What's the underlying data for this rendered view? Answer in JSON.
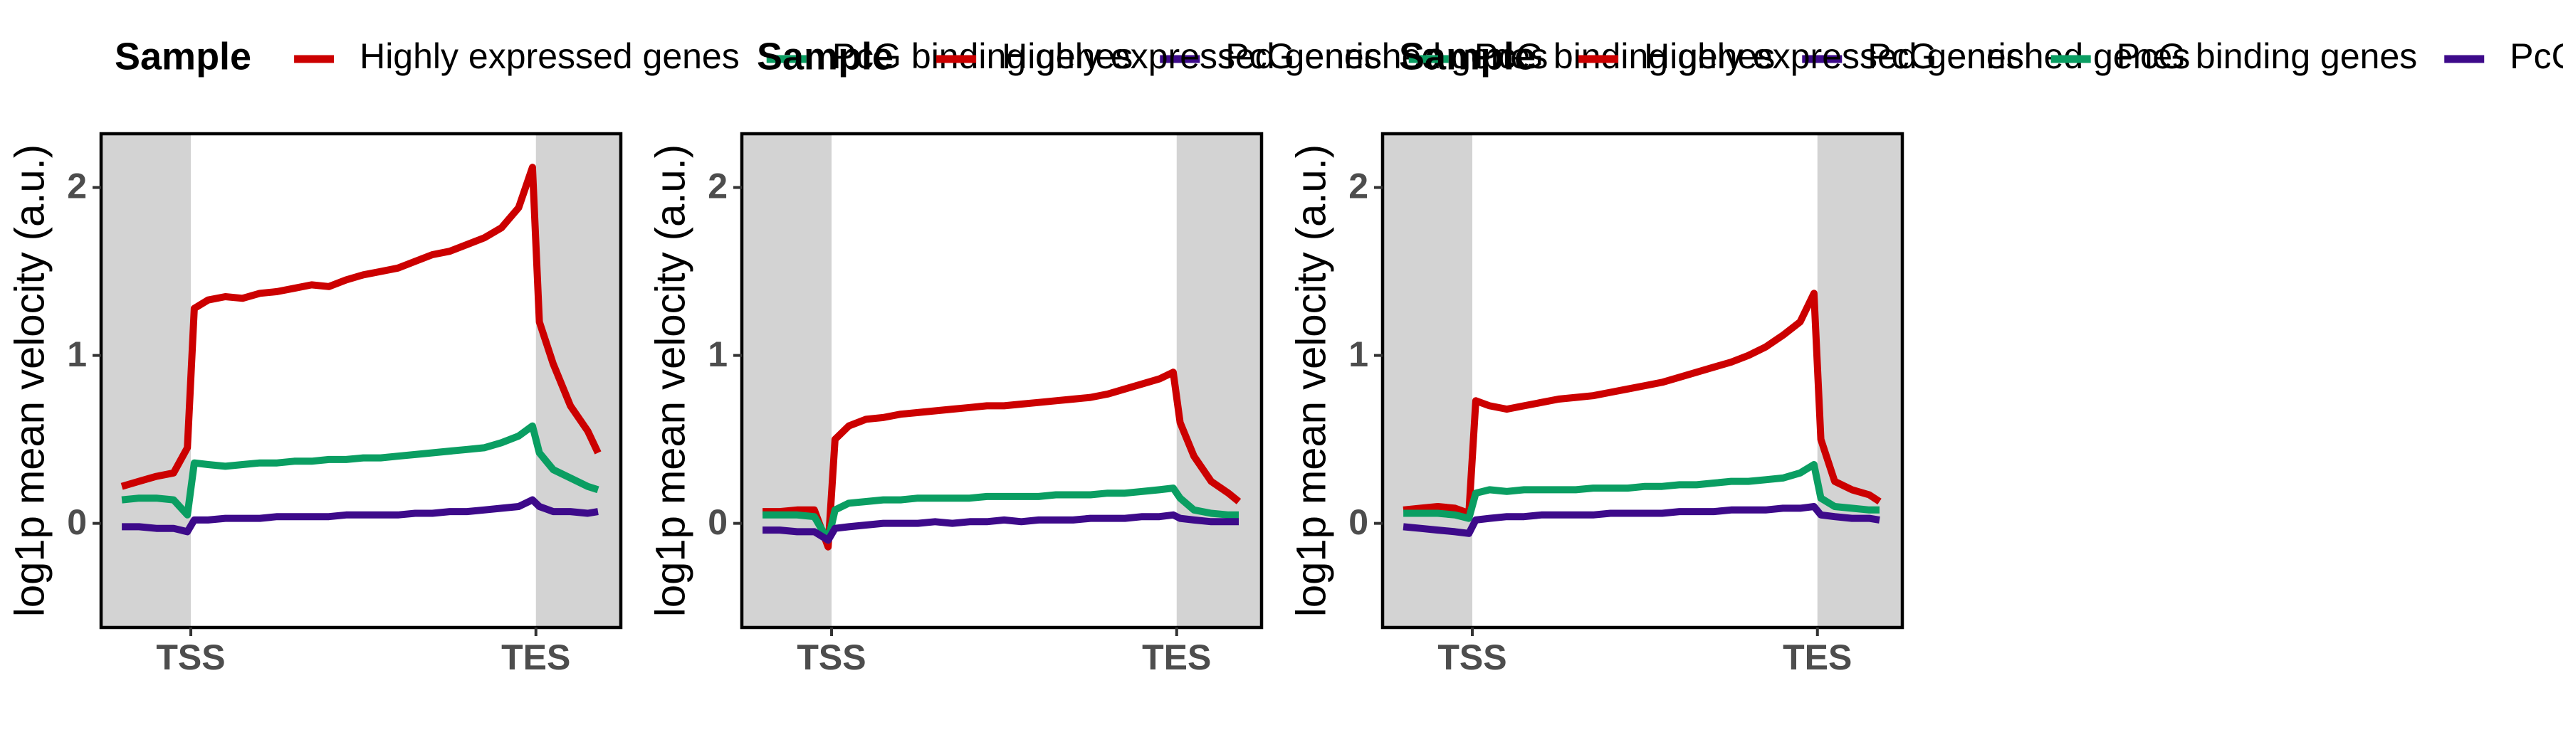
{
  "chart_data": [
    {
      "type": "line",
      "legend_title": "Sample",
      "y_label": "log1p mean velocity (a.u.)",
      "x": [
        -20,
        -15,
        -10,
        -5,
        -1,
        1,
        5,
        10,
        15,
        20,
        25,
        30,
        35,
        40,
        45,
        50,
        55,
        60,
        65,
        70,
        75,
        80,
        85,
        90,
        95,
        99,
        101,
        105,
        110,
        115,
        118
      ],
      "xlim": [
        -26,
        124.6
      ],
      "ylim": [
        -0.62,
        2.32
      ],
      "xticks": [
        {
          "value": 0,
          "label": "TSS"
        },
        {
          "value": 100,
          "label": "TES"
        }
      ],
      "yticks": [
        0,
        1,
        2
      ],
      "series": [
        {
          "name": "Highly expressed genes",
          "color": "#cc0000",
          "values": [
            0.22,
            0.25,
            0.28,
            0.3,
            0.45,
            1.28,
            1.33,
            1.35,
            1.34,
            1.37,
            1.38,
            1.4,
            1.42,
            1.41,
            1.45,
            1.48,
            1.5,
            1.52,
            1.56,
            1.6,
            1.62,
            1.66,
            1.7,
            1.76,
            1.88,
            2.12,
            1.2,
            0.95,
            0.7,
            0.55,
            0.42
          ]
        },
        {
          "name": "PcG binding genes",
          "color": "#0a9e62",
          "values": [
            0.14,
            0.15,
            0.15,
            0.14,
            0.05,
            0.36,
            0.35,
            0.34,
            0.35,
            0.36,
            0.36,
            0.37,
            0.37,
            0.38,
            0.38,
            0.39,
            0.39,
            0.4,
            0.41,
            0.42,
            0.43,
            0.44,
            0.45,
            0.48,
            0.52,
            0.58,
            0.42,
            0.32,
            0.27,
            0.22,
            0.2
          ]
        },
        {
          "name": "PcG enriched genes",
          "color": "#3d0a8a",
          "values": [
            -0.02,
            -0.02,
            -0.03,
            -0.03,
            -0.05,
            0.02,
            0.02,
            0.03,
            0.03,
            0.03,
            0.04,
            0.04,
            0.04,
            0.04,
            0.05,
            0.05,
            0.05,
            0.05,
            0.06,
            0.06,
            0.07,
            0.07,
            0.08,
            0.09,
            0.1,
            0.14,
            0.1,
            0.07,
            0.07,
            0.06,
            0.07
          ]
        }
      ]
    },
    {
      "type": "line",
      "legend_title": "Sample",
      "y_label": "log1p mean velocity (a.u.)",
      "x": [
        -20,
        -15,
        -10,
        -5,
        -1,
        1,
        5,
        10,
        15,
        20,
        25,
        30,
        35,
        40,
        45,
        50,
        55,
        60,
        65,
        70,
        75,
        80,
        85,
        90,
        95,
        99,
        101,
        105,
        110,
        115,
        118
      ],
      "xlim": [
        -26,
        124.6
      ],
      "ylim": [
        -0.62,
        2.32
      ],
      "xticks": [
        {
          "value": 0,
          "label": "TSS"
        },
        {
          "value": 100,
          "label": "TES"
        }
      ],
      "yticks": [
        0,
        1,
        2
      ],
      "series": [
        {
          "name": "Highly expressed genes",
          "color": "#cc0000",
          "values": [
            0.07,
            0.07,
            0.08,
            0.08,
            -0.14,
            0.5,
            0.58,
            0.62,
            0.63,
            0.65,
            0.66,
            0.67,
            0.68,
            0.69,
            0.7,
            0.7,
            0.71,
            0.72,
            0.73,
            0.74,
            0.75,
            0.77,
            0.8,
            0.83,
            0.86,
            0.9,
            0.6,
            0.4,
            0.25,
            0.18,
            0.13
          ]
        },
        {
          "name": "PcG binding genes",
          "color": "#0a9e62",
          "values": [
            0.05,
            0.05,
            0.05,
            0.04,
            -0.1,
            0.08,
            0.12,
            0.13,
            0.14,
            0.14,
            0.15,
            0.15,
            0.15,
            0.15,
            0.16,
            0.16,
            0.16,
            0.16,
            0.17,
            0.17,
            0.17,
            0.18,
            0.18,
            0.19,
            0.2,
            0.21,
            0.15,
            0.08,
            0.06,
            0.05,
            0.05
          ]
        },
        {
          "name": "PcG enriched genes",
          "color": "#3d0a8a",
          "values": [
            -0.04,
            -0.04,
            -0.05,
            -0.05,
            -0.1,
            -0.03,
            -0.02,
            -0.01,
            0,
            0,
            0,
            0.01,
            0,
            0.01,
            0.01,
            0.02,
            0.01,
            0.02,
            0.02,
            0.02,
            0.03,
            0.03,
            0.03,
            0.04,
            0.04,
            0.05,
            0.03,
            0.02,
            0.01,
            0.01,
            0.01
          ]
        }
      ]
    },
    {
      "type": "line",
      "legend_title": "Sample",
      "y_label": "log1p mean velocity (a.u.)",
      "x": [
        -20,
        -15,
        -10,
        -5,
        -1,
        1,
        5,
        10,
        15,
        20,
        25,
        30,
        35,
        40,
        45,
        50,
        55,
        60,
        65,
        70,
        75,
        80,
        85,
        90,
        95,
        99,
        101,
        105,
        110,
        115,
        118
      ],
      "xlim": [
        -26,
        124.6
      ],
      "ylim": [
        -0.62,
        2.32
      ],
      "xticks": [
        {
          "value": 0,
          "label": "TSS"
        },
        {
          "value": 100,
          "label": "TES"
        }
      ],
      "yticks": [
        0,
        1,
        2
      ],
      "series": [
        {
          "name": "Highly expressed genes",
          "color": "#cc0000",
          "values": [
            0.08,
            0.09,
            0.1,
            0.09,
            0.06,
            0.73,
            0.7,
            0.68,
            0.7,
            0.72,
            0.74,
            0.75,
            0.76,
            0.78,
            0.8,
            0.82,
            0.84,
            0.87,
            0.9,
            0.93,
            0.96,
            1.0,
            1.05,
            1.12,
            1.2,
            1.37,
            0.5,
            0.25,
            0.2,
            0.17,
            0.13
          ]
        },
        {
          "name": "PcG binding genes",
          "color": "#0a9e62",
          "values": [
            0.06,
            0.06,
            0.06,
            0.05,
            0.03,
            0.18,
            0.2,
            0.19,
            0.2,
            0.2,
            0.2,
            0.2,
            0.21,
            0.21,
            0.21,
            0.22,
            0.22,
            0.23,
            0.23,
            0.24,
            0.25,
            0.25,
            0.26,
            0.27,
            0.3,
            0.35,
            0.15,
            0.1,
            0.09,
            0.08,
            0.08
          ]
        },
        {
          "name": "PcG enriched genes",
          "color": "#3d0a8a",
          "values": [
            -0.02,
            -0.03,
            -0.04,
            -0.05,
            -0.06,
            0.02,
            0.03,
            0.04,
            0.04,
            0.05,
            0.05,
            0.05,
            0.05,
            0.06,
            0.06,
            0.06,
            0.06,
            0.07,
            0.07,
            0.07,
            0.08,
            0.08,
            0.08,
            0.09,
            0.09,
            0.1,
            0.05,
            0.04,
            0.03,
            0.03,
            0.02
          ]
        }
      ]
    }
  ]
}
